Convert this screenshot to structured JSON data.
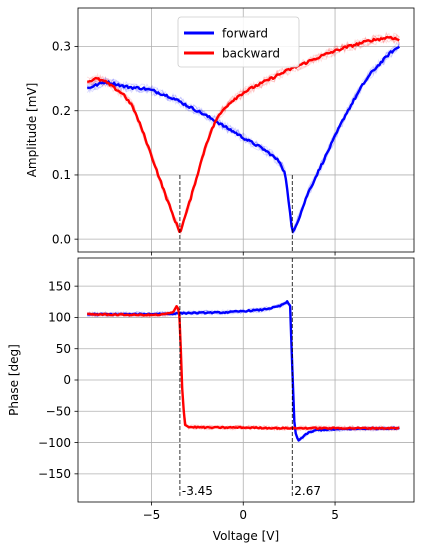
{
  "chart_data": [
    {
      "type": "line",
      "panel": "top",
      "xlabel": "",
      "ylabel": "Amplitude [mV]",
      "xlim": [
        -9,
        9.3
      ],
      "ylim": [
        -0.02,
        0.36
      ],
      "xticks": [
        -5,
        0,
        5
      ],
      "yticks": [
        0.0,
        0.1,
        0.2,
        0.3
      ],
      "ytick_labels": [
        "0.0",
        "0.1",
        "0.2",
        "0.3"
      ],
      "grid": true,
      "legend_location": "top-center",
      "series": [
        {
          "name": "forward",
          "color": "#0000ff",
          "x": [
            -8.5,
            -8.0,
            -7.5,
            -7.0,
            -6.5,
            -6.0,
            -5.5,
            -5.0,
            -4.5,
            -4.0,
            -3.5,
            -3.0,
            -2.5,
            -2.0,
            -1.5,
            -1.0,
            -0.5,
            0.0,
            0.5,
            1.0,
            1.5,
            2.0,
            2.3,
            2.67,
            3.0,
            3.5,
            4.0,
            4.5,
            5.0,
            5.5,
            6.0,
            6.5,
            7.0,
            7.5,
            8.0,
            8.5
          ],
          "y": [
            0.235,
            0.24,
            0.245,
            0.242,
            0.238,
            0.236,
            0.235,
            0.232,
            0.227,
            0.222,
            0.215,
            0.207,
            0.2,
            0.192,
            0.184,
            0.175,
            0.167,
            0.158,
            0.15,
            0.142,
            0.132,
            0.12,
            0.1,
            0.01,
            0.03,
            0.07,
            0.1,
            0.13,
            0.16,
            0.19,
            0.215,
            0.24,
            0.26,
            0.275,
            0.29,
            0.3
          ]
        },
        {
          "name": "backward",
          "color": "#ff0000",
          "x": [
            -8.5,
            -8.0,
            -7.5,
            -7.0,
            -6.5,
            -6.0,
            -5.5,
            -5.0,
            -4.5,
            -4.0,
            -3.45,
            -3.0,
            -2.5,
            -2.0,
            -1.5,
            -1.0,
            -0.5,
            0.0,
            0.5,
            1.0,
            1.5,
            2.0,
            2.5,
            3.0,
            3.5,
            4.0,
            4.5,
            5.0,
            5.5,
            6.0,
            6.5,
            7.0,
            7.5,
            8.0,
            8.5
          ],
          "y": [
            0.245,
            0.25,
            0.245,
            0.235,
            0.225,
            0.205,
            0.17,
            0.13,
            0.09,
            0.05,
            0.01,
            0.05,
            0.1,
            0.15,
            0.185,
            0.205,
            0.218,
            0.228,
            0.236,
            0.243,
            0.25,
            0.257,
            0.264,
            0.27,
            0.276,
            0.282,
            0.288,
            0.293,
            0.298,
            0.302,
            0.306,
            0.31,
            0.312,
            0.315,
            0.31
          ]
        }
      ]
    },
    {
      "type": "line",
      "panel": "bottom",
      "xlabel": "Voltage [V]",
      "ylabel": "Phase [deg]",
      "xlim": [
        -9,
        9.3
      ],
      "ylim": [
        -195,
        195
      ],
      "xticks": [
        -5,
        0,
        5
      ],
      "xtick_labels": [
        "−5",
        "0",
        "5"
      ],
      "yticks": [
        -150,
        -100,
        -50,
        0,
        50,
        100,
        150
      ],
      "ytick_labels": [
        "−150",
        "−100",
        "−50",
        "0",
        "50",
        "100",
        "150"
      ],
      "grid": true,
      "series": [
        {
          "name": "forward",
          "color": "#0000ff",
          "x": [
            -8.5,
            -6.0,
            -4.0,
            -3.0,
            -1.0,
            0.0,
            1.0,
            2.0,
            2.4,
            2.55,
            2.67,
            2.8,
            3.0,
            3.5,
            4.0,
            6.0,
            8.5
          ],
          "y": [
            105,
            105,
            106,
            107,
            108,
            110,
            112,
            118,
            125,
            118,
            20,
            -80,
            -97,
            -85,
            -80,
            -78,
            -77
          ]
        },
        {
          "name": "backward",
          "color": "#ff0000",
          "x": [
            -8.5,
            -6.0,
            -4.5,
            -3.8,
            -3.6,
            -3.45,
            -3.35,
            -3.2,
            -3.0,
            -2.0,
            0.0,
            2.0,
            4.0,
            6.0,
            8.5
          ],
          "y": [
            105,
            104,
            104,
            108,
            120,
            100,
            0,
            -70,
            -75,
            -76,
            -76,
            -77,
            -77,
            -77,
            -77
          ]
        }
      ],
      "annotations": [
        {
          "x": -3.45,
          "label": "-3.45"
        },
        {
          "x": 2.67,
          "label": "2.67"
        }
      ]
    }
  ],
  "legend": {
    "entries": [
      {
        "name": "forward",
        "color": "#0000ff"
      },
      {
        "name": "backward",
        "color": "#ff0000"
      }
    ]
  }
}
